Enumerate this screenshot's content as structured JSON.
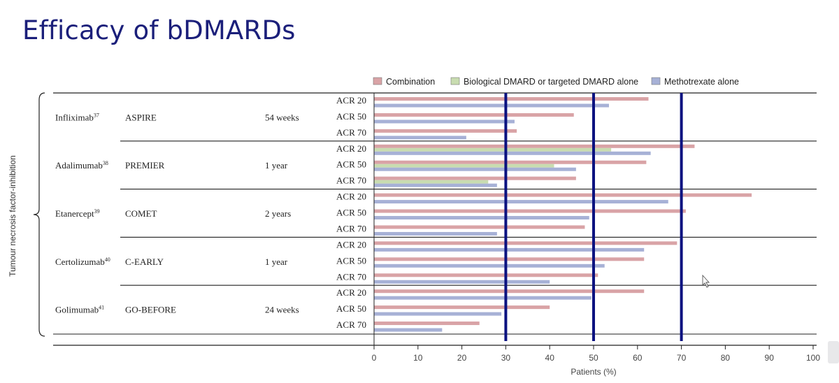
{
  "slide": {
    "title": "Efficacy of bDMARDs"
  },
  "chart_data": {
    "type": "bar",
    "orientation": "horizontal",
    "side_label": "Tumour necrosis factor-inhibition",
    "xlabel": "Patients (%)",
    "xlim": [
      0,
      100
    ],
    "xticks": [
      0,
      10,
      20,
      30,
      40,
      50,
      60,
      70,
      80,
      90,
      100
    ],
    "reference_lines": [
      30,
      50,
      70
    ],
    "legend": [
      {
        "key": "combination",
        "label": "Combination",
        "color": "#d9a3a6"
      },
      {
        "key": "biologic",
        "label": "Biological DMARD or targeted DMARD alone",
        "color": "#c8dcb0"
      },
      {
        "key": "mtx",
        "label": "Methotrexate alone",
        "color": "#a7b1d6"
      }
    ],
    "trials": [
      {
        "drug": "Infliximab",
        "ref": "37",
        "study": "ASPIRE",
        "duration": "54 weeks",
        "rows": [
          {
            "label": "ACR 20",
            "combination": 62.5,
            "biologic": null,
            "mtx": 53.5
          },
          {
            "label": "ACR 50",
            "combination": 45.5,
            "biologic": null,
            "mtx": 32
          },
          {
            "label": "ACR 70",
            "combination": 32.5,
            "biologic": null,
            "mtx": 21
          }
        ]
      },
      {
        "drug": "Adalimumab",
        "ref": "38",
        "study": "PREMIER",
        "duration": "1 year",
        "rows": [
          {
            "label": "ACR 20",
            "combination": 73,
            "biologic": 54,
            "mtx": 63
          },
          {
            "label": "ACR 50",
            "combination": 62,
            "biologic": 41,
            "mtx": 46
          },
          {
            "label": "ACR 70",
            "combination": 46,
            "biologic": 26,
            "mtx": 28
          }
        ]
      },
      {
        "drug": "Etanercept",
        "ref": "39",
        "study": "COMET",
        "duration": "2 years",
        "rows": [
          {
            "label": "ACR 20",
            "combination": 86,
            "biologic": null,
            "mtx": 67
          },
          {
            "label": "ACR 50",
            "combination": 71,
            "biologic": null,
            "mtx": 49
          },
          {
            "label": "ACR 70",
            "combination": 48,
            "biologic": null,
            "mtx": 28
          }
        ]
      },
      {
        "drug": "Certolizumab",
        "ref": "40",
        "study": "C-EARLY",
        "duration": "1 year",
        "rows": [
          {
            "label": "ACR 20",
            "combination": 69,
            "biologic": null,
            "mtx": 61.5
          },
          {
            "label": "ACR 50",
            "combination": 61.5,
            "biologic": null,
            "mtx": 52.5
          },
          {
            "label": "ACR 70",
            "combination": 51,
            "biologic": null,
            "mtx": 40
          }
        ]
      },
      {
        "drug": "Golimumab",
        "ref": "41",
        "study": "GO-BEFORE",
        "duration": "24 weeks",
        "rows": [
          {
            "label": "ACR 20",
            "combination": 61.5,
            "biologic": null,
            "mtx": 49.5
          },
          {
            "label": "ACR 50",
            "combination": 40,
            "biologic": null,
            "mtx": 29
          },
          {
            "label": "ACR 70",
            "combination": 24,
            "biologic": null,
            "mtx": 15.5
          }
        ]
      }
    ]
  }
}
